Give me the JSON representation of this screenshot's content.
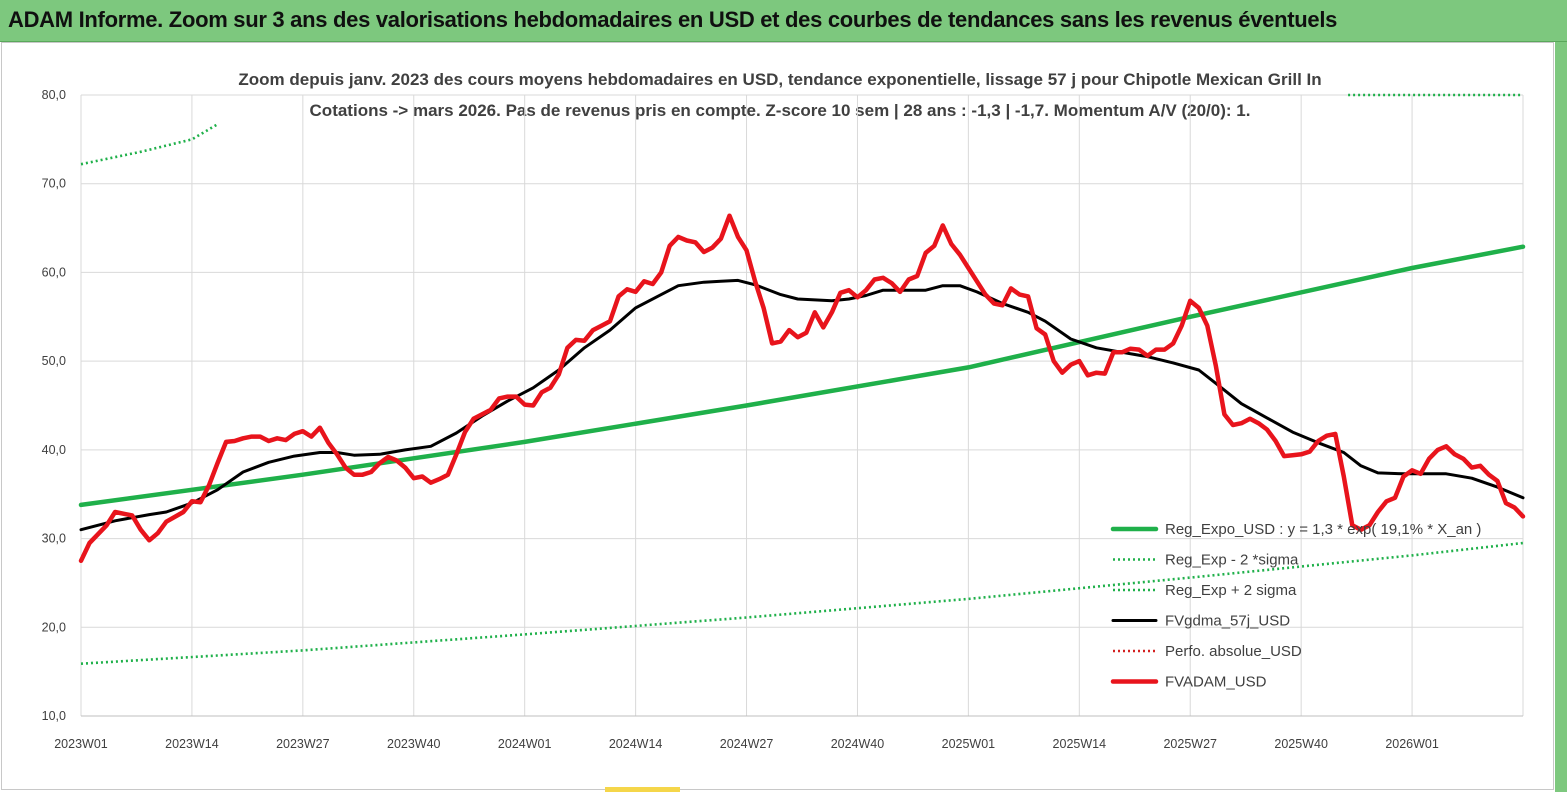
{
  "header": {
    "title": "ADAM Informe. Zoom sur 3 ans des valorisations hebdomadaires en USD et des courbes de tendances sans les revenus éventuels"
  },
  "colors": {
    "header_bg": "#7dc87e",
    "trend": "#1fb04a",
    "smooth": "#000000",
    "price": "#e8141c",
    "perfo": "#d42020",
    "grid": "#d9d9d9"
  },
  "chart_data": {
    "type": "line",
    "title": "Zoom depuis janv. 2023 des cours moyens hebdomadaires en USD, tendance exponentielle, lissage 57 j pour Chipotle Mexican Grill In",
    "subtitle": "Cotations -> mars 2026. Pas de revenus pris en compte. Z-score 10 sem | 28 ans : -1,3 | -1,7. Momentum A/V (20/0): 1.",
    "xlabel": "",
    "ylabel": "",
    "ylim": [
      10,
      80
    ],
    "xlim": [
      0,
      169
    ],
    "y_ticks": [
      "10,0",
      "20,0",
      "30,0",
      "40,0",
      "50,0",
      "60,0",
      "70,0",
      "80,0"
    ],
    "x_ticks": [
      {
        "label": "2023W01",
        "x": 0
      },
      {
        "label": "2023W14",
        "x": 13
      },
      {
        "label": "2023W27",
        "x": 26
      },
      {
        "label": "2023W40",
        "x": 39
      },
      {
        "label": "2024W01",
        "x": 52
      },
      {
        "label": "2024W14",
        "x": 65
      },
      {
        "label": "2024W27",
        "x": 78
      },
      {
        "label": "2024W40",
        "x": 91
      },
      {
        "label": "2025W01",
        "x": 104
      },
      {
        "label": "2025W14",
        "x": 117
      },
      {
        "label": "2025W27",
        "x": 130
      },
      {
        "label": "2025W40",
        "x": 143
      },
      {
        "label": "2026W01",
        "x": 156
      }
    ],
    "grid": true,
    "legend_position": "bottom-right",
    "series": [
      {
        "name": "Reg_Expo_USD : y = 1,3  * exp( 19,1% *  X_an )",
        "style": "solid-thick",
        "color": "#1fb04a",
        "points": [
          [
            0,
            33.8
          ],
          [
            26,
            37.2
          ],
          [
            52,
            40.9
          ],
          [
            78,
            45.0
          ],
          [
            104,
            49.3
          ],
          [
            130,
            55.0
          ],
          [
            156,
            60.5
          ],
          [
            169,
            62.9
          ]
        ]
      },
      {
        "name": "Reg_Exp - 2 *sigma",
        "style": "dotted",
        "color": "#1fb04a",
        "points": [
          [
            0,
            15.9
          ],
          [
            26,
            17.4
          ],
          [
            52,
            19.2
          ],
          [
            78,
            21.1
          ],
          [
            104,
            23.2
          ],
          [
            130,
            25.6
          ],
          [
            156,
            28.1
          ],
          [
            169,
            29.5
          ]
        ]
      },
      {
        "name": "Reg_Exp + 2 sigma",
        "style": "dotted",
        "color": "#1fb04a",
        "points": [
          [
            0,
            72.2
          ],
          [
            7,
            73.6
          ],
          [
            13,
            75.0
          ],
          [
            16,
            76.7
          ]
        ],
        "points_b": [
          [
            148.5,
            80.0
          ],
          [
            169,
            80.0
          ]
        ]
      },
      {
        "name": "FVgdma_57j_USD",
        "style": "solid",
        "color": "#000000",
        "points": [
          [
            0,
            31.0
          ],
          [
            4,
            32.0
          ],
          [
            8,
            32.7
          ],
          [
            10,
            33.0
          ],
          [
            13,
            34.0
          ],
          [
            16,
            35.5
          ],
          [
            19,
            37.5
          ],
          [
            22,
            38.6
          ],
          [
            25,
            39.3
          ],
          [
            28,
            39.7
          ],
          [
            30,
            39.7
          ],
          [
            32,
            39.4
          ],
          [
            35,
            39.5
          ],
          [
            38,
            40.0
          ],
          [
            41,
            40.4
          ],
          [
            44,
            41.9
          ],
          [
            47,
            43.8
          ],
          [
            50,
            45.5
          ],
          [
            53,
            47.0
          ],
          [
            56,
            49.0
          ],
          [
            59,
            51.5
          ],
          [
            62,
            53.5
          ],
          [
            65,
            56.0
          ],
          [
            68,
            57.5
          ],
          [
            70,
            58.5
          ],
          [
            73,
            58.9
          ],
          [
            75,
            59.0
          ],
          [
            77,
            59.1
          ],
          [
            79,
            58.6
          ],
          [
            82,
            57.5
          ],
          [
            84,
            57.0
          ],
          [
            86,
            56.9
          ],
          [
            88,
            56.8
          ],
          [
            90,
            57.0
          ],
          [
            92,
            57.4
          ],
          [
            94,
            58.0
          ],
          [
            97,
            58.0
          ],
          [
            99,
            58.0
          ],
          [
            101,
            58.5
          ],
          [
            103,
            58.5
          ],
          [
            105,
            57.8
          ],
          [
            108,
            56.5
          ],
          [
            111,
            55.5
          ],
          [
            113,
            54.5
          ],
          [
            116,
            52.5
          ],
          [
            119,
            51.5
          ],
          [
            122,
            51.0
          ],
          [
            125,
            50.5
          ],
          [
            128,
            49.8
          ],
          [
            131,
            49.0
          ],
          [
            133,
            47.5
          ],
          [
            136,
            45.2
          ],
          [
            139,
            43.6
          ],
          [
            142,
            42.0
          ],
          [
            145,
            40.8
          ],
          [
            148,
            39.7
          ],
          [
            150,
            38.2
          ],
          [
            152,
            37.4
          ],
          [
            155,
            37.3
          ],
          [
            158,
            37.3
          ],
          [
            160,
            37.3
          ],
          [
            163,
            36.8
          ],
          [
            166,
            35.8
          ],
          [
            169,
            34.6
          ]
        ]
      },
      {
        "name": "Perfo. absolue_USD",
        "style": "dotted",
        "color": "#d42020",
        "points": []
      },
      {
        "name": "FVADAM_USD",
        "style": "solid-thick",
        "color": "#e8141c",
        "points": [
          [
            0,
            27.5
          ],
          [
            1,
            29.5
          ],
          [
            3,
            31.5
          ],
          [
            4,
            33.0
          ],
          [
            6,
            32.6
          ],
          [
            7,
            31.0
          ],
          [
            8,
            29.8
          ],
          [
            9,
            30.6
          ],
          [
            10,
            31.9
          ],
          [
            12,
            33.0
          ],
          [
            13,
            34.2
          ],
          [
            14,
            34.1
          ],
          [
            15,
            36.0
          ],
          [
            16,
            38.5
          ],
          [
            17,
            40.9
          ],
          [
            18,
            41.0
          ],
          [
            19,
            41.3
          ],
          [
            20,
            41.5
          ],
          [
            21,
            41.5
          ],
          [
            22,
            41.0
          ],
          [
            23,
            41.3
          ],
          [
            24,
            41.1
          ],
          [
            25,
            41.8
          ],
          [
            26,
            42.1
          ],
          [
            27,
            41.5
          ],
          [
            28,
            42.5
          ],
          [
            29,
            40.8
          ],
          [
            30,
            39.5
          ],
          [
            31,
            38.0
          ],
          [
            32,
            37.2
          ],
          [
            33,
            37.2
          ],
          [
            34,
            37.5
          ],
          [
            35,
            38.5
          ],
          [
            36,
            39.2
          ],
          [
            37,
            38.8
          ],
          [
            38,
            38.0
          ],
          [
            39,
            36.8
          ],
          [
            40,
            37.0
          ],
          [
            41,
            36.3
          ],
          [
            42,
            36.7
          ],
          [
            43,
            37.2
          ],
          [
            44,
            39.5
          ],
          [
            45,
            42.0
          ],
          [
            46,
            43.5
          ],
          [
            47,
            44.0
          ],
          [
            48,
            44.5
          ],
          [
            49,
            45.8
          ],
          [
            50,
            46.0
          ],
          [
            51,
            46.0
          ],
          [
            52,
            45.1
          ],
          [
            53,
            45.0
          ],
          [
            54,
            46.5
          ],
          [
            55,
            47.0
          ],
          [
            56,
            48.5
          ],
          [
            57,
            51.5
          ],
          [
            58,
            52.4
          ],
          [
            59,
            52.3
          ],
          [
            60,
            53.5
          ],
          [
            61,
            54.0
          ],
          [
            62,
            54.5
          ],
          [
            63,
            57.3
          ],
          [
            64,
            58.1
          ],
          [
            65,
            57.8
          ],
          [
            66,
            59.0
          ],
          [
            67,
            58.7
          ],
          [
            68,
            60.0
          ],
          [
            69,
            63.0
          ],
          [
            70,
            64.0
          ],
          [
            71,
            63.6
          ],
          [
            72,
            63.4
          ],
          [
            73,
            62.3
          ],
          [
            74,
            62.8
          ],
          [
            75,
            63.8
          ],
          [
            76,
            66.4
          ],
          [
            77,
            64.0
          ],
          [
            78,
            62.5
          ],
          [
            79,
            59.0
          ],
          [
            80,
            56.0
          ],
          [
            81,
            52.0
          ],
          [
            82,
            52.2
          ],
          [
            83,
            53.5
          ],
          [
            84,
            52.7
          ],
          [
            85,
            53.2
          ],
          [
            86,
            55.5
          ],
          [
            87,
            53.8
          ],
          [
            88,
            55.5
          ],
          [
            89,
            57.7
          ],
          [
            90,
            58.0
          ],
          [
            91,
            57.2
          ],
          [
            92,
            58.0
          ],
          [
            93,
            59.2
          ],
          [
            94,
            59.4
          ],
          [
            95,
            58.8
          ],
          [
            96,
            57.8
          ],
          [
            97,
            59.2
          ],
          [
            98,
            59.6
          ],
          [
            99,
            62.2
          ],
          [
            100,
            63.0
          ],
          [
            101,
            65.3
          ],
          [
            102,
            63.2
          ],
          [
            103,
            62.0
          ],
          [
            104,
            60.5
          ],
          [
            105,
            59.0
          ],
          [
            106,
            57.5
          ],
          [
            107,
            56.5
          ],
          [
            108,
            56.3
          ],
          [
            109,
            58.2
          ],
          [
            110,
            57.5
          ],
          [
            111,
            57.3
          ],
          [
            112,
            53.7
          ],
          [
            113,
            53.0
          ],
          [
            114,
            50.0
          ],
          [
            115,
            48.7
          ],
          [
            116,
            49.6
          ],
          [
            117,
            50.0
          ],
          [
            118,
            48.4
          ],
          [
            119,
            48.7
          ],
          [
            120,
            48.6
          ],
          [
            121,
            51.0
          ],
          [
            122,
            51.0
          ],
          [
            123,
            51.4
          ],
          [
            124,
            51.3
          ],
          [
            125,
            50.6
          ],
          [
            126,
            51.3
          ],
          [
            127,
            51.3
          ],
          [
            128,
            52.0
          ],
          [
            129,
            54.0
          ],
          [
            130,
            56.8
          ],
          [
            131,
            56.0
          ],
          [
            132,
            54.0
          ],
          [
            133,
            49.5
          ],
          [
            134,
            44.0
          ],
          [
            135,
            42.8
          ],
          [
            136,
            43.0
          ],
          [
            137,
            43.5
          ],
          [
            138,
            43.0
          ],
          [
            139,
            42.3
          ],
          [
            140,
            41.0
          ],
          [
            141,
            39.3
          ],
          [
            142,
            39.4
          ],
          [
            143,
            39.5
          ],
          [
            144,
            39.8
          ],
          [
            145,
            41.0
          ],
          [
            146,
            41.6
          ],
          [
            147,
            41.8
          ],
          [
            148,
            37.0
          ],
          [
            149,
            31.5
          ],
          [
            150,
            31.0
          ],
          [
            151,
            31.5
          ],
          [
            152,
            33.0
          ],
          [
            153,
            34.2
          ],
          [
            154,
            34.6
          ],
          [
            155,
            37.0
          ],
          [
            156,
            37.7
          ],
          [
            157,
            37.3
          ],
          [
            158,
            39.0
          ],
          [
            159,
            40.0
          ],
          [
            160,
            40.4
          ],
          [
            161,
            39.5
          ],
          [
            162,
            39.0
          ],
          [
            163,
            38.0
          ],
          [
            164,
            38.2
          ],
          [
            165,
            37.2
          ],
          [
            166,
            36.5
          ],
          [
            167,
            34.0
          ],
          [
            168,
            33.5
          ],
          [
            169,
            32.5
          ]
        ]
      }
    ]
  }
}
